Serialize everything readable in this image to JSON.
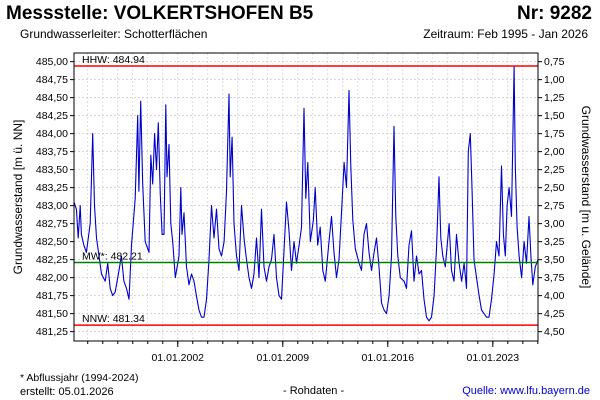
{
  "header": {
    "title": "Messstelle: VOLKERTSHOFEN B5",
    "nr": "Nr: 9282",
    "aquifer": "Grundwasserleiter:   Schotterflächen",
    "period": "Zeitraum: Feb 1995 - Jan 2026"
  },
  "footer": {
    "footnote": "* Abflussjahr (1994-2024)",
    "created": "erstellt:  05.01.2026",
    "rawdata": "- Rohdaten -",
    "source": "Quelle: www.lfu.bayern.de"
  },
  "colors": {
    "series": "#0000cc",
    "hhw_line": "#ff0000",
    "nnw_line": "#ff0000",
    "mw_line": "#008000",
    "grid": "#c8c8c8"
  },
  "chart_data": {
    "type": "line",
    "title": "Messstelle: VOLKERTSHOFEN B5",
    "ylabel": "Grundwasserstand [m ü. NN]",
    "y2label": "Grundwasserstand [m u. Gelände]",
    "ylim": [
      481.12,
      485.12
    ],
    "y2lim": [
      4.63,
      0.63
    ],
    "yticks": [
      "485,00",
      "484,75",
      "484,50",
      "484,25",
      "484,00",
      "483,75",
      "483,50",
      "483,25",
      "483,00",
      "482,75",
      "482,50",
      "482,25",
      "482,00",
      "481,75",
      "481,50",
      "481,25"
    ],
    "yticks_values": [
      485.0,
      484.75,
      484.5,
      484.25,
      484.0,
      483.75,
      483.5,
      483.25,
      483.0,
      482.75,
      482.5,
      482.25,
      482.0,
      481.75,
      481.5,
      481.25
    ],
    "y2ticks": [
      "0,75",
      "1,00",
      "1,25",
      "1,50",
      "1,75",
      "2,00",
      "2,25",
      "2,50",
      "2,75",
      "3,00",
      "3,25",
      "3,50",
      "3,75",
      "4,00",
      "4,25",
      "4,50"
    ],
    "y2ticks_values": [
      0.75,
      1.0,
      1.25,
      1.5,
      1.75,
      2.0,
      2.25,
      2.5,
      2.75,
      3.0,
      3.25,
      3.5,
      3.75,
      4.0,
      4.25,
      4.5
    ],
    "xlim": [
      "1995-02-01",
      "2026-01-05"
    ],
    "xticks": [
      "01.01.2002",
      "01.01.2009",
      "01.01.2016",
      "01.01.2023"
    ],
    "xticks_values": [
      "2002-01-01",
      "2009-01-01",
      "2016-01-01",
      "2023-01-01"
    ],
    "grid": true,
    "reference_lines": [
      {
        "label": "HHW: 484.94",
        "value": 484.94,
        "color": "#ff0000"
      },
      {
        "label": "MW*: 482.21",
        "value": 482.21,
        "color": "#008000"
      },
      {
        "label": "NNW: 481.34",
        "value": 481.34,
        "color": "#ff0000"
      }
    ],
    "series": [
      {
        "color": "#0000cc",
        "points": [
          [
            "1995-02-01",
            483.05
          ],
          [
            "1995-04-01",
            482.95
          ],
          [
            "1995-05-15",
            482.55
          ],
          [
            "1995-07-01",
            483.0
          ],
          [
            "1995-08-01",
            482.6
          ],
          [
            "1995-10-01",
            482.45
          ],
          [
            "1995-12-01",
            482.35
          ],
          [
            "1996-03-01",
            482.75
          ],
          [
            "1996-05-01",
            484.0
          ],
          [
            "1996-06-15",
            483.0
          ],
          [
            "1996-08-01",
            482.55
          ],
          [
            "1996-10-01",
            482.3
          ],
          [
            "1996-12-01",
            482.05
          ],
          [
            "1997-03-01",
            481.95
          ],
          [
            "1997-05-01",
            482.2
          ],
          [
            "1997-07-01",
            481.85
          ],
          [
            "1997-09-01",
            481.75
          ],
          [
            "1997-11-01",
            481.8
          ],
          [
            "1998-02-01",
            482.1
          ],
          [
            "1998-04-01",
            482.3
          ],
          [
            "1998-06-01",
            481.95
          ],
          [
            "1998-08-01",
            481.85
          ],
          [
            "1998-10-01",
            481.7
          ],
          [
            "1998-12-01",
            482.45
          ],
          [
            "1999-03-01",
            483.1
          ],
          [
            "1999-05-01",
            484.25
          ],
          [
            "1999-06-01",
            483.2
          ],
          [
            "1999-07-15",
            484.45
          ],
          [
            "1999-09-01",
            483.3
          ],
          [
            "1999-11-01",
            482.5
          ],
          [
            "2000-02-01",
            482.35
          ],
          [
            "2000-03-15",
            483.7
          ],
          [
            "2000-05-01",
            483.3
          ],
          [
            "2000-06-15",
            484.0
          ],
          [
            "2000-08-01",
            483.5
          ],
          [
            "2000-09-15",
            484.15
          ],
          [
            "2000-11-01",
            483.15
          ],
          [
            "2000-12-15",
            482.6
          ],
          [
            "2001-02-01",
            482.6
          ],
          [
            "2001-03-15",
            484.4
          ],
          [
            "2001-04-15",
            483.4
          ],
          [
            "2001-06-01",
            483.85
          ],
          [
            "2001-07-15",
            482.75
          ],
          [
            "2001-09-01",
            482.5
          ],
          [
            "2001-11-01",
            482.0
          ],
          [
            "2002-02-01",
            482.3
          ],
          [
            "2002-03-15",
            483.25
          ],
          [
            "2002-04-15",
            482.6
          ],
          [
            "2002-06-01",
            482.9
          ],
          [
            "2002-08-01",
            482.15
          ],
          [
            "2002-10-01",
            481.9
          ],
          [
            "2002-12-01",
            482.05
          ],
          [
            "2003-02-01",
            481.95
          ],
          [
            "2003-04-01",
            481.75
          ],
          [
            "2003-06-01",
            481.55
          ],
          [
            "2003-08-01",
            481.45
          ],
          [
            "2003-10-01",
            481.45
          ],
          [
            "2003-12-01",
            481.7
          ],
          [
            "2004-02-01",
            482.25
          ],
          [
            "2004-04-01",
            483.0
          ],
          [
            "2004-06-01",
            482.55
          ],
          [
            "2004-08-01",
            482.95
          ],
          [
            "2004-10-01",
            482.4
          ],
          [
            "2004-12-01",
            482.3
          ],
          [
            "2005-02-01",
            482.5
          ],
          [
            "2005-04-01",
            483.2
          ],
          [
            "2005-06-01",
            484.55
          ],
          [
            "2005-07-01",
            483.4
          ],
          [
            "2005-08-15",
            483.95
          ],
          [
            "2005-10-01",
            482.75
          ],
          [
            "2005-12-01",
            482.3
          ],
          [
            "2006-02-01",
            482.1
          ],
          [
            "2006-04-01",
            483.0
          ],
          [
            "2006-06-01",
            482.55
          ],
          [
            "2006-08-01",
            482.25
          ],
          [
            "2006-10-01",
            482.0
          ],
          [
            "2006-12-01",
            481.85
          ],
          [
            "2007-02-01",
            482.05
          ],
          [
            "2007-04-01",
            482.55
          ],
          [
            "2007-06-01",
            482.0
          ],
          [
            "2007-08-01",
            482.95
          ],
          [
            "2007-10-01",
            482.15
          ],
          [
            "2007-12-01",
            481.95
          ],
          [
            "2008-02-01",
            482.15
          ],
          [
            "2008-04-01",
            482.25
          ],
          [
            "2008-06-01",
            482.6
          ],
          [
            "2008-08-01",
            482.0
          ],
          [
            "2008-10-01",
            481.75
          ],
          [
            "2008-12-01",
            481.7
          ],
          [
            "2009-02-01",
            482.4
          ],
          [
            "2009-04-01",
            483.05
          ],
          [
            "2009-06-01",
            482.65
          ],
          [
            "2009-08-01",
            482.1
          ],
          [
            "2009-10-01",
            482.5
          ],
          [
            "2009-12-01",
            482.2
          ],
          [
            "2010-02-01",
            482.45
          ],
          [
            "2010-04-01",
            482.7
          ],
          [
            "2010-06-01",
            484.35
          ],
          [
            "2010-07-15",
            483.1
          ],
          [
            "2010-09-01",
            483.6
          ],
          [
            "2010-11-01",
            482.5
          ],
          [
            "2011-01-15",
            482.8
          ],
          [
            "2011-03-01",
            483.25
          ],
          [
            "2011-05-01",
            482.45
          ],
          [
            "2011-07-01",
            482.7
          ],
          [
            "2011-09-01",
            482.1
          ],
          [
            "2011-11-01",
            481.95
          ],
          [
            "2012-02-01",
            482.5
          ],
          [
            "2012-04-01",
            482.85
          ],
          [
            "2012-06-01",
            482.35
          ],
          [
            "2012-08-01",
            482.0
          ],
          [
            "2012-10-01",
            482.25
          ],
          [
            "2012-12-01",
            482.9
          ],
          [
            "2013-02-01",
            483.6
          ],
          [
            "2013-04-01",
            483.25
          ],
          [
            "2013-06-01",
            484.6
          ],
          [
            "2013-07-15",
            483.55
          ],
          [
            "2013-09-01",
            482.8
          ],
          [
            "2013-11-01",
            482.4
          ],
          [
            "2014-02-01",
            482.2
          ],
          [
            "2014-04-01",
            482.1
          ],
          [
            "2014-06-01",
            482.6
          ],
          [
            "2014-08-01",
            482.75
          ],
          [
            "2014-10-01",
            482.35
          ],
          [
            "2014-12-01",
            482.1
          ],
          [
            "2015-02-01",
            482.35
          ],
          [
            "2015-04-01",
            482.55
          ],
          [
            "2015-06-01",
            482.15
          ],
          [
            "2015-08-01",
            481.65
          ],
          [
            "2015-10-01",
            481.55
          ],
          [
            "2015-12-01",
            481.5
          ],
          [
            "2016-02-01",
            481.75
          ],
          [
            "2016-04-01",
            482.3
          ],
          [
            "2016-06-01",
            484.1
          ],
          [
            "2016-07-15",
            482.85
          ],
          [
            "2016-09-01",
            482.3
          ],
          [
            "2016-11-01",
            482.0
          ],
          [
            "2017-02-01",
            481.95
          ],
          [
            "2017-04-01",
            481.85
          ],
          [
            "2017-06-01",
            482.45
          ],
          [
            "2017-08-01",
            482.65
          ],
          [
            "2017-10-01",
            481.95
          ],
          [
            "2017-12-01",
            482.3
          ],
          [
            "2018-02-01",
            482.05
          ],
          [
            "2018-04-01",
            482.1
          ],
          [
            "2018-06-01",
            481.7
          ],
          [
            "2018-08-01",
            481.45
          ],
          [
            "2018-10-01",
            481.4
          ],
          [
            "2018-12-01",
            481.45
          ],
          [
            "2019-02-01",
            481.75
          ],
          [
            "2019-04-01",
            482.4
          ],
          [
            "2019-06-01",
            483.4
          ],
          [
            "2019-07-15",
            482.55
          ],
          [
            "2019-09-01",
            482.3
          ],
          [
            "2019-11-01",
            482.15
          ],
          [
            "2020-02-01",
            482.75
          ],
          [
            "2020-04-01",
            482.1
          ],
          [
            "2020-06-01",
            481.95
          ],
          [
            "2020-08-01",
            482.6
          ],
          [
            "2020-10-01",
            482.2
          ],
          [
            "2020-12-01",
            481.95
          ],
          [
            "2021-02-01",
            482.2
          ],
          [
            "2021-04-01",
            481.85
          ],
          [
            "2021-05-15",
            483.75
          ],
          [
            "2021-07-01",
            484.0
          ],
          [
            "2021-08-15",
            483.2
          ],
          [
            "2021-10-01",
            482.25
          ],
          [
            "2021-12-01",
            482.0
          ],
          [
            "2022-02-01",
            481.75
          ],
          [
            "2022-04-01",
            481.55
          ],
          [
            "2022-06-01",
            481.5
          ],
          [
            "2022-08-01",
            481.45
          ],
          [
            "2022-10-01",
            481.45
          ],
          [
            "2022-12-01",
            481.7
          ],
          [
            "2023-02-01",
            482.05
          ],
          [
            "2023-04-01",
            482.5
          ],
          [
            "2023-06-01",
            482.3
          ],
          [
            "2023-08-01",
            483.55
          ],
          [
            "2023-09-15",
            482.6
          ],
          [
            "2023-11-01",
            482.3
          ],
          [
            "2023-12-15",
            483.0
          ],
          [
            "2024-02-01",
            483.25
          ],
          [
            "2024-04-01",
            482.85
          ],
          [
            "2024-06-01",
            484.94
          ],
          [
            "2024-07-01",
            483.55
          ],
          [
            "2024-08-15",
            482.7
          ],
          [
            "2024-10-01",
            482.3
          ],
          [
            "2024-12-01",
            482.0
          ],
          [
            "2025-02-01",
            482.5
          ],
          [
            "2025-04-01",
            482.2
          ],
          [
            "2025-06-01",
            482.85
          ],
          [
            "2025-07-15",
            482.3
          ],
          [
            "2025-09-01",
            481.9
          ],
          [
            "2025-11-01",
            482.15
          ],
          [
            "2026-01-05",
            482.25
          ]
        ]
      }
    ]
  }
}
